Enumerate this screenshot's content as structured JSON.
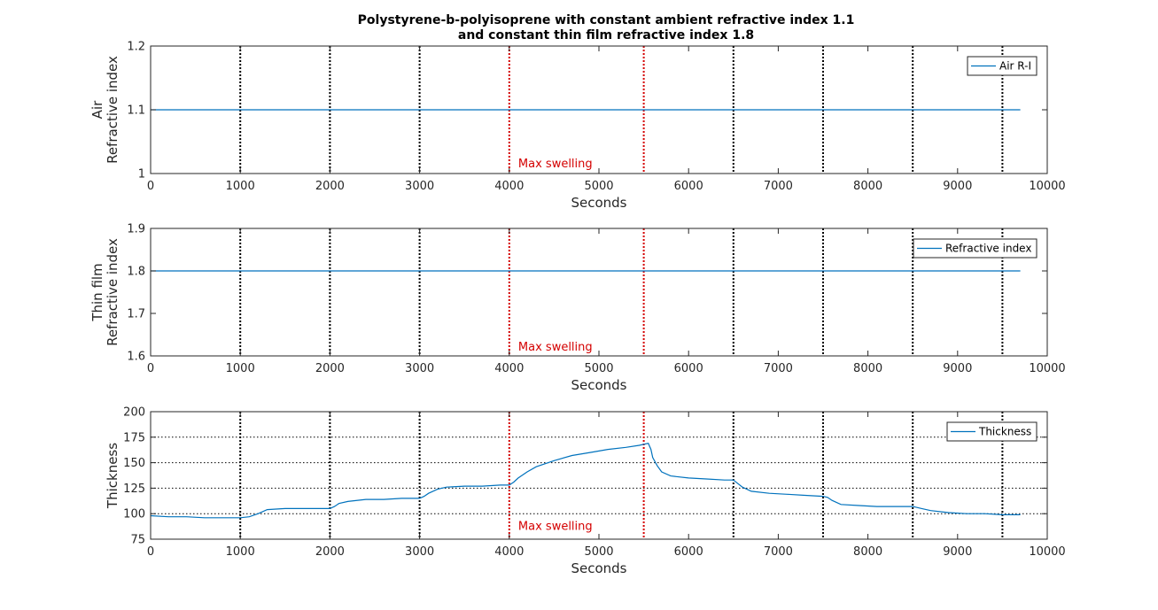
{
  "title_lines": [
    "Polystyrene-b-polyisoprene with constant ambient refractive index 1.1",
    "and constant thin film refractive index 1.8"
  ],
  "colors": {
    "series": "#0072bd",
    "marker_black": "#000000",
    "marker_red": "#d40000",
    "axes": "#262626",
    "grid": "#000000"
  },
  "chart_data": [
    {
      "type": "line",
      "xlabel": "Seconds",
      "ylabel_lines": [
        "Air",
        "Refractive index"
      ],
      "xlim": [
        0,
        10000
      ],
      "ylim": [
        1,
        1.2
      ],
      "xticks": [
        0,
        1000,
        2000,
        3000,
        4000,
        5000,
        6000,
        7000,
        8000,
        9000,
        10000
      ],
      "yticks": [
        1,
        1.1,
        1.2
      ],
      "ytick_labels": [
        "1",
        "1.1",
        "1.2"
      ],
      "ygrid": false,
      "legend_position": "top-right",
      "series": [
        {
          "name": "Air R-I",
          "x": [
            0,
            9700
          ],
          "y": [
            1.1,
            1.1
          ]
        }
      ],
      "annotation": {
        "text": "Max swelling",
        "x": 4100,
        "y": 1.01
      }
    },
    {
      "type": "line",
      "xlabel": "Seconds",
      "ylabel_lines": [
        "Thin film",
        "Refractive index"
      ],
      "xlim": [
        0,
        10000
      ],
      "ylim": [
        1.6,
        1.9
      ],
      "xticks": [
        0,
        1000,
        2000,
        3000,
        4000,
        5000,
        6000,
        7000,
        8000,
        9000,
        10000
      ],
      "yticks": [
        1.6,
        1.7,
        1.8,
        1.9
      ],
      "ytick_labels": [
        "1.6",
        "1.7",
        "1.8",
        "1.9"
      ],
      "ygrid": false,
      "legend_position": "top-right",
      "series": [
        {
          "name": "Refractive index",
          "x": [
            0,
            9700
          ],
          "y": [
            1.8,
            1.8
          ]
        }
      ],
      "annotation": {
        "text": "Max swelling",
        "x": 4100,
        "y": 1.613
      }
    },
    {
      "type": "line",
      "xlabel": "Seconds",
      "ylabel_lines": [
        "Thickness"
      ],
      "xlim": [
        0,
        10000
      ],
      "ylim": [
        75,
        200
      ],
      "xticks": [
        0,
        1000,
        2000,
        3000,
        4000,
        5000,
        6000,
        7000,
        8000,
        9000,
        10000
      ],
      "yticks": [
        75,
        100,
        125,
        150,
        175,
        200
      ],
      "ytick_labels": [
        "75",
        "100",
        "125",
        "150",
        "175",
        "200"
      ],
      "ygrid": true,
      "legend_position": "top-right",
      "series": [
        {
          "name": "Thickness",
          "x": [
            0,
            200,
            400,
            600,
            800,
            1000,
            1100,
            1200,
            1300,
            1500,
            1700,
            1900,
            2000,
            2050,
            2100,
            2200,
            2400,
            2600,
            2800,
            3000,
            3050,
            3100,
            3200,
            3300,
            3500,
            3700,
            3900,
            4000,
            4050,
            4100,
            4200,
            4300,
            4500,
            4700,
            4900,
            5100,
            5300,
            5450,
            5550,
            5580,
            5600,
            5650,
            5700,
            5800,
            6000,
            6200,
            6400,
            6500,
            6600,
            6700,
            6900,
            7100,
            7300,
            7500,
            7550,
            7600,
            7700,
            7900,
            8100,
            8300,
            8500,
            8600,
            8700,
            8900,
            9100,
            9300,
            9500,
            9700
          ],
          "y": [
            98,
            97,
            97,
            96,
            96,
            96,
            97,
            100,
            104,
            105,
            105,
            105,
            105,
            107,
            110,
            112,
            114,
            114,
            115,
            115,
            117,
            120,
            124,
            126,
            127,
            127,
            128,
            128,
            131,
            135,
            141,
            146,
            152,
            157,
            160,
            163,
            165,
            167,
            169,
            163,
            155,
            147,
            141,
            137,
            135,
            134,
            133,
            133,
            126,
            122,
            120,
            119,
            118,
            117,
            116,
            113,
            109,
            108,
            107,
            107,
            107,
            105,
            103,
            101,
            100,
            100,
            99,
            99
          ]
        }
      ],
      "annotation": {
        "text": "Max swelling",
        "x": 4100,
        "y": 84
      }
    }
  ],
  "vertical_markers": [
    {
      "x": 1000,
      "kind": "black"
    },
    {
      "x": 2000,
      "kind": "black"
    },
    {
      "x": 3000,
      "kind": "black"
    },
    {
      "x": 4000,
      "kind": "red"
    },
    {
      "x": 5500,
      "kind": "red"
    },
    {
      "x": 6500,
      "kind": "black"
    },
    {
      "x": 7500,
      "kind": "black"
    },
    {
      "x": 8500,
      "kind": "black"
    },
    {
      "x": 9500,
      "kind": "black"
    }
  ]
}
